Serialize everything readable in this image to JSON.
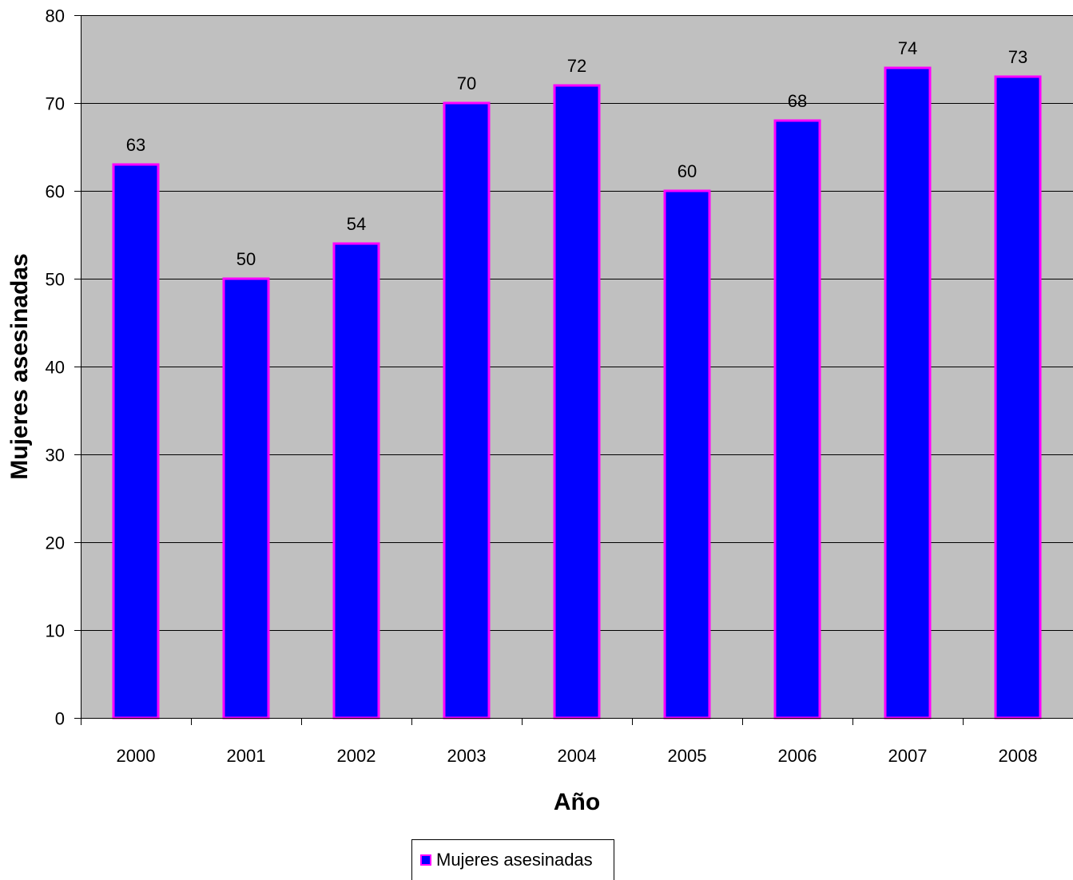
{
  "chart_data": {
    "type": "bar",
    "categories": [
      "2000",
      "2001",
      "2002",
      "2003",
      "2004",
      "2005",
      "2006",
      "2007",
      "2008"
    ],
    "series": [
      {
        "name": "Mujeres asesinadas",
        "values": [
          63,
          50,
          54,
          70,
          72,
          60,
          68,
          74,
          73
        ]
      }
    ],
    "data_labels": [
      "63",
      "50",
      "54",
      "70",
      "72",
      "60",
      "68",
      "74",
      "73"
    ],
    "xlabel": "Año",
    "ylabel": "Mujeres asesinadas",
    "ylim": [
      0,
      80
    ],
    "yticks": [
      0,
      10,
      20,
      30,
      40,
      50,
      60,
      70,
      80
    ],
    "grid": true,
    "legend_position": "bottom",
    "colors": {
      "bar_fill": "#0000ff",
      "bar_border": "#ff00ff",
      "plot_background": "#c0c0c0",
      "gridline": "#000000"
    }
  }
}
